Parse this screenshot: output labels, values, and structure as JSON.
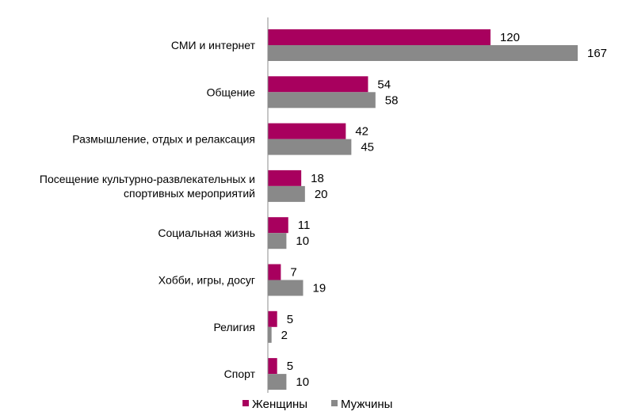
{
  "chart_data": {
    "type": "bar",
    "orientation": "horizontal",
    "title": "",
    "xlabel": "",
    "ylabel": "",
    "grid": false,
    "legend_position": "bottom",
    "xlim": [
      0,
      167
    ],
    "categories": [
      [
        "СМИ и интернет"
      ],
      [
        "Общение"
      ],
      [
        "Размышление, отдых и релаксация"
      ],
      [
        "Посещение культурно-развлекательных и",
        "спортивных мероприятий"
      ],
      [
        "Социальная жизнь"
      ],
      [
        "Хобби, игры, досуг"
      ],
      [
        "Религия"
      ],
      [
        "Спорт"
      ]
    ],
    "series": [
      {
        "name": "Женщины",
        "color": "#A8005E",
        "values": [
          120,
          54,
          42,
          18,
          11,
          7,
          5,
          5
        ]
      },
      {
        "name": "Мужчины",
        "color": "#898989",
        "values": [
          167,
          58,
          45,
          20,
          10,
          19,
          2,
          10
        ]
      }
    ]
  }
}
